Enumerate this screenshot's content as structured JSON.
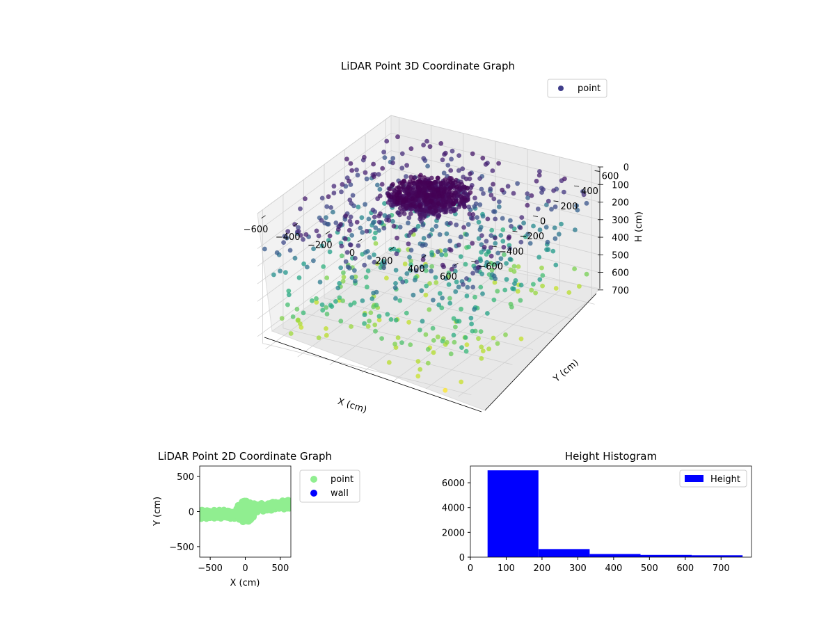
{
  "chart_data": [
    {
      "type": "scatter",
      "subtype": "3d",
      "title": "LiDAR Point 3D Coordinate Graph",
      "xlabel": "X (cm)",
      "ylabel": "Y (cm)",
      "zlabel": "H (cm)",
      "x_ticks": [
        -600,
        -400,
        -200,
        0,
        200,
        400,
        600
      ],
      "y_ticks": [
        -600,
        -400,
        -200,
        0,
        200,
        400,
        600
      ],
      "z_ticks": [
        0,
        100,
        200,
        300,
        400,
        500,
        600,
        700
      ],
      "x_tick_labels": [
        "−600",
        "−400",
        "−200",
        "0",
        "200",
        "400",
        "600"
      ],
      "y_tick_labels": [
        "−600",
        "−400",
        "−200",
        "0",
        "200",
        "400",
        "600"
      ],
      "z_tick_labels": [
        "0",
        "100",
        "200",
        "300",
        "400",
        "500",
        "600",
        "700"
      ],
      "xlim": [
        -650,
        650
      ],
      "ylim": [
        -650,
        650
      ],
      "zlim": [
        0,
        760
      ],
      "z_inverted": true,
      "colormap": "viridis",
      "legend": {
        "entries": [
          "point"
        ],
        "placement": "top-right"
      },
      "series": [
        {
          "name": "point",
          "description": "dense cluster of points near height 0 forming a ring around origin plus scattered points down to ~760 cm",
          "points_sample": [
            {
              "x": -40,
              "y": 60,
              "h": 5
            },
            {
              "x": 80,
              "y": 20,
              "h": 10
            },
            {
              "x": 60,
              "y": -60,
              "h": 20
            },
            {
              "x": -80,
              "y": -40,
              "h": 30
            },
            {
              "x": 0,
              "y": 100,
              "h": 40
            },
            {
              "x": 120,
              "y": 80,
              "h": 60
            },
            {
              "x": -150,
              "y": 50,
              "h": 80
            },
            {
              "x": 200,
              "y": -100,
              "h": 100
            },
            {
              "x": -250,
              "y": 200,
              "h": 150
            },
            {
              "x": 300,
              "y": 250,
              "h": 200
            },
            {
              "x": -350,
              "y": -200,
              "h": 250
            },
            {
              "x": 400,
              "y": -300,
              "h": 300
            },
            {
              "x": -450,
              "y": 350,
              "h": 350
            },
            {
              "x": 450,
              "y": 450,
              "h": 400
            },
            {
              "x": -550,
              "y": -400,
              "h": 450
            },
            {
              "x": 550,
              "y": -500,
              "h": 500
            },
            {
              "x": -600,
              "y": 500,
              "h": 550
            },
            {
              "x": 600,
              "y": 600,
              "h": 600
            },
            {
              "x": -300,
              "y": -600,
              "h": 650
            },
            {
              "x": 350,
              "y": -650,
              "h": 700
            },
            {
              "x": 500,
              "y": -620,
              "h": 760
            }
          ]
        }
      ]
    },
    {
      "type": "scatter",
      "title": "LiDAR Point 2D Coordinate Graph",
      "xlabel": "X (cm)",
      "ylabel": "Y (cm)",
      "x_ticks": [
        -500,
        0,
        500
      ],
      "y_ticks": [
        -500,
        0,
        500
      ],
      "x_tick_labels": [
        "−500",
        "0",
        "500"
      ],
      "y_tick_labels": [
        "−500",
        "0",
        "500"
      ],
      "xlim": [
        -650,
        650
      ],
      "ylim": [
        -650,
        650
      ],
      "legend": {
        "entries": [
          "point",
          "wall"
        ],
        "placement": "outside-right"
      },
      "series": [
        {
          "name": "point",
          "color": "#90ee90",
          "description": "horizontal band of points from x=-650 to 650 near y=0, with a round blob around the origin",
          "points_sample": [
            {
              "x": -640,
              "y": -60
            },
            {
              "x": -560,
              "y": -40
            },
            {
              "x": -480,
              "y": -55
            },
            {
              "x": -400,
              "y": -30
            },
            {
              "x": -320,
              "y": -60
            },
            {
              "x": -240,
              "y": -40
            },
            {
              "x": -160,
              "y": -20
            },
            {
              "x": -80,
              "y": -10
            },
            {
              "x": 0,
              "y": 0
            },
            {
              "x": 60,
              "y": 40
            },
            {
              "x": -40,
              "y": 80
            },
            {
              "x": 50,
              "y": -80
            },
            {
              "x": 120,
              "y": 60
            },
            {
              "x": 200,
              "y": 40
            },
            {
              "x": 280,
              "y": 50
            },
            {
              "x": 360,
              "y": 70
            },
            {
              "x": 440,
              "y": 80
            },
            {
              "x": 520,
              "y": 90
            },
            {
              "x": 600,
              "y": 100
            },
            {
              "x": 640,
              "y": 110
            }
          ]
        },
        {
          "name": "wall",
          "color": "#0000ff",
          "points_sample": []
        }
      ]
    },
    {
      "type": "bar",
      "subtype": "histogram",
      "title": "Height Histogram",
      "xlabel": "",
      "ylabel": "",
      "x_ticks": [
        0,
        100,
        200,
        300,
        400,
        500,
        600,
        700
      ],
      "y_ticks": [
        0,
        2000,
        4000,
        6000
      ],
      "x_tick_labels": [
        "0",
        "100",
        "200",
        "300",
        "400",
        "500",
        "600",
        "700"
      ],
      "y_tick_labels": [
        "0",
        "2000",
        "4000",
        "6000"
      ],
      "xlim": [
        0,
        785
      ],
      "ylim": [
        0,
        7350
      ],
      "color": "#0000ff",
      "legend": {
        "entries": [
          "Height"
        ],
        "placement": "top-right"
      },
      "bins": [
        {
          "start": 48,
          "end": 190,
          "count": 7000
        },
        {
          "start": 190,
          "end": 333,
          "count": 650
        },
        {
          "start": 333,
          "end": 475,
          "count": 250
        },
        {
          "start": 475,
          "end": 618,
          "count": 180
        },
        {
          "start": 618,
          "end": 760,
          "count": 150
        }
      ]
    }
  ]
}
